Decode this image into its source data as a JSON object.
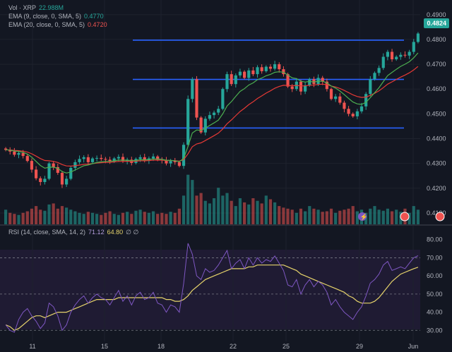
{
  "legend": {
    "vol": {
      "label": "Vol · XRP",
      "value": "22.988M"
    },
    "ema9": {
      "label": "EMA (9, close, 0, SMA, 5)",
      "value": "0.4770"
    },
    "ema20": {
      "label": "EMA (20, close, 0, SMA, 5)",
      "value": "0.4720"
    },
    "rsi": {
      "label": "RSI (14, close, SMA, 14, 2)",
      "value1": "71.12",
      "value2": "64.80",
      "extra": "∅ ∅"
    }
  },
  "price_badge": "0.4824",
  "colors": {
    "up": "#26a69a",
    "down": "#ef5350",
    "ema9": "#4caf50",
    "ema20": "#e53935",
    "level_line": "#2962ff",
    "rsi": "#7e57c2",
    "rsi_ma": "#e6d36b"
  },
  "chart_data": {
    "type": "candlestick",
    "price_axis": {
      "ticks": [
        "0.4900",
        "0.4800",
        "0.4700",
        "0.4600",
        "0.4500",
        "0.4400",
        "0.4300",
        "0.4200",
        "0.4100"
      ],
      "range": [
        0.406,
        0.4925
      ]
    },
    "rsi_axis": {
      "ticks": [
        "80.00",
        "70.00",
        "60.00",
        "50.00",
        "40.00",
        "30.00"
      ],
      "range": [
        27,
        83
      ]
    },
    "date_axis": {
      "labels": [
        "11",
        "15",
        "18",
        "22",
        "25",
        "29",
        "Jun"
      ]
    },
    "horizontal_levels": [
      0.4797,
      0.4639,
      0.4443
    ],
    "close": [
      0.4355,
      0.4348,
      0.4335,
      0.4342,
      0.433,
      0.431,
      0.4275,
      0.424,
      0.4225,
      0.4238,
      0.43,
      0.4285,
      0.4262,
      0.4215,
      0.4238,
      0.4282,
      0.4305,
      0.4318,
      0.4325,
      0.4305,
      0.432,
      0.4322,
      0.4318,
      0.4315,
      0.4308,
      0.432,
      0.4326,
      0.431,
      0.4315,
      0.4302,
      0.4318,
      0.4325,
      0.4312,
      0.432,
      0.4328,
      0.4315,
      0.4312,
      0.43,
      0.431,
      0.4305,
      0.429,
      0.4375,
      0.456,
      0.464,
      0.4485,
      0.4425,
      0.448,
      0.4495,
      0.4505,
      0.452,
      0.46,
      0.466,
      0.462,
      0.4655,
      0.467,
      0.4645,
      0.4675,
      0.466,
      0.4688,
      0.4672,
      0.469,
      0.4682,
      0.47,
      0.468,
      0.466,
      0.461,
      0.46,
      0.463,
      0.459,
      0.4615,
      0.464,
      0.462,
      0.4645,
      0.463,
      0.46,
      0.456,
      0.457,
      0.4545,
      0.452,
      0.45,
      0.449,
      0.451,
      0.453,
      0.458,
      0.464,
      0.4665,
      0.4685,
      0.473,
      0.475,
      0.472,
      0.473,
      0.4738,
      0.4735,
      0.475,
      0.479,
      0.4824
    ],
    "volume_share": [
      0.28,
      0.22,
      0.2,
      0.18,
      0.22,
      0.25,
      0.3,
      0.35,
      0.28,
      0.26,
      0.38,
      0.4,
      0.3,
      0.35,
      0.32,
      0.28,
      0.25,
      0.22,
      0.2,
      0.24,
      0.22,
      0.2,
      0.18,
      0.22,
      0.25,
      0.2,
      0.18,
      0.22,
      0.24,
      0.2,
      0.26,
      0.28,
      0.24,
      0.22,
      0.25,
      0.2,
      0.22,
      0.2,
      0.24,
      0.22,
      0.3,
      0.55,
      0.95,
      0.85,
      0.55,
      0.6,
      0.45,
      0.4,
      0.5,
      0.7,
      0.55,
      0.6,
      0.45,
      0.35,
      0.5,
      0.42,
      0.38,
      0.5,
      0.45,
      0.4,
      0.55,
      0.48,
      0.42,
      0.35,
      0.32,
      0.3,
      0.28,
      0.22,
      0.3,
      0.25,
      0.35,
      0.3,
      0.28,
      0.24,
      0.25,
      0.3,
      0.22,
      0.26,
      0.28,
      0.3,
      0.35,
      0.25,
      0.28,
      0.22,
      0.3,
      0.35,
      0.28,
      0.26,
      0.3,
      0.25,
      0.28,
      0.24,
      0.3,
      0.22,
      0.35,
      0.28
    ],
    "rsi": [
      33,
      30,
      29,
      36,
      40,
      42,
      38,
      35,
      31,
      34,
      45,
      43,
      38,
      30,
      33,
      40,
      44,
      47,
      49,
      45,
      48,
      50,
      48,
      47,
      44,
      48,
      52,
      46,
      49,
      44,
      49,
      51,
      47,
      48,
      51,
      45,
      44,
      40,
      44,
      43,
      40,
      56,
      78,
      72,
      60,
      58,
      64,
      62,
      63,
      66,
      70,
      74,
      64,
      67,
      69,
      64,
      70,
      66,
      70,
      67,
      69,
      68,
      71,
      67,
      63,
      55,
      54,
      58,
      50,
      55,
      58,
      54,
      57,
      55,
      51,
      44,
      47,
      43,
      40,
      38,
      36,
      40,
      43,
      49,
      56,
      58,
      61,
      66,
      68,
      63,
      64,
      65,
      64,
      67,
      70,
      71.12
    ],
    "rsi_ma": [
      33,
      32,
      30,
      31,
      33,
      35,
      37,
      38,
      38,
      37,
      38,
      39,
      40,
      40,
      40,
      41,
      42,
      43,
      44,
      45,
      46,
      47,
      47,
      47,
      47,
      47,
      48,
      48,
      48,
      48,
      48,
      48,
      48,
      48,
      48,
      48,
      48,
      47,
      47,
      46,
      46,
      47,
      49,
      52,
      54,
      56,
      58,
      59,
      60,
      61,
      62,
      63,
      64,
      64,
      64,
      64,
      65,
      65,
      66,
      66,
      66,
      66,
      66,
      66,
      66,
      65,
      64,
      63,
      61,
      60,
      59,
      58,
      57,
      56,
      55,
      54,
      53,
      52,
      51,
      49,
      48,
      46,
      45,
      45,
      45,
      46,
      48,
      51,
      54,
      57,
      59,
      61,
      62,
      63,
      64,
      64.8
    ]
  }
}
